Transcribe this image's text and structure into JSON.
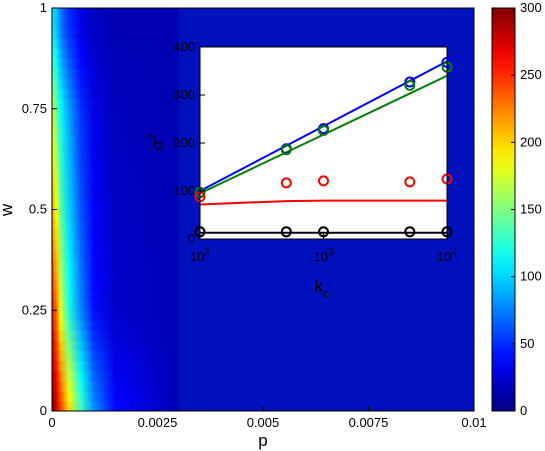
{
  "chart_data": [
    {
      "type": "heatmap",
      "xlabel": "p",
      "ylabel": "w",
      "xlim": [
        0,
        0.01
      ],
      "ylim": [
        0,
        1
      ],
      "x_ticks": [
        0,
        0.0025,
        0.005,
        0.0075,
        0.01
      ],
      "x_tick_labels": [
        "0",
        "0.0025",
        "0.005",
        "0.0075",
        "0.01"
      ],
      "y_ticks": [
        0,
        0.25,
        0.5,
        0.75,
        1
      ],
      "y_tick_labels": [
        "0",
        "0.25",
        "0.5",
        "0.75",
        "1"
      ],
      "colorbar": {
        "range": [
          0,
          300
        ],
        "ticks": [
          0,
          50,
          100,
          150,
          200,
          250,
          300
        ],
        "tick_labels": [
          "0",
          "50",
          "100",
          "150",
          "200",
          "250",
          "300"
        ],
        "colormap": "jet"
      },
      "background_value": 15,
      "ridge": [
        {
          "w": 0.0,
          "values": [
            300,
            280,
            250,
            200,
            130,
            80,
            40,
            15
          ]
        },
        {
          "w": 0.25,
          "values": [
            260,
            230,
            180,
            120,
            75,
            40,
            22,
            15
          ]
        },
        {
          "w": 0.5,
          "values": [
            215,
            185,
            140,
            100,
            60,
            35,
            20,
            15
          ]
        },
        {
          "w": 0.75,
          "values": [
            170,
            145,
            115,
            85,
            50,
            30,
            18,
            15
          ]
        },
        {
          "w": 0.95,
          "values": [
            110,
            95,
            75,
            50,
            30,
            20,
            15,
            15
          ]
        }
      ],
      "ridge_p": [
        0,
        0.0001,
        0.0002,
        0.0004,
        0.0007,
        0.001,
        0.0015,
        0.003
      ]
    },
    {
      "type": "line",
      "xlabel": "k",
      "xlabel_subscript": "c",
      "ylabel": "σ",
      "ylabel_superscript": "2",
      "x_scale": "log",
      "xlim": [
        100,
        10000
      ],
      "ylim": [
        0,
        400
      ],
      "x_ticks": [
        100,
        1000,
        10000
      ],
      "x_tick_base": [
        "10",
        "10",
        "10"
      ],
      "x_tick_exponents": [
        "2",
        "3",
        "4"
      ],
      "y_ticks": [
        0,
        100,
        200,
        300,
        400
      ],
      "y_tick_labels": [
        "0",
        "100",
        "200",
        "300",
        "400"
      ],
      "series": [
        {
          "color": "#0000ff",
          "line": {
            "x": [
              100,
              10000
            ],
            "y": [
              100,
              370
            ]
          },
          "markers": {
            "x": [
              100,
              500,
              1000,
              5000,
              10000
            ],
            "y": [
              97,
              188,
              230,
              327,
              368
            ]
          }
        },
        {
          "color": "#008000",
          "line": {
            "x": [
              100,
              10000
            ],
            "y": [
              95,
              340
            ]
          },
          "markers": {
            "x": [
              100,
              500,
              1000,
              5000,
              10000
            ],
            "y": [
              97,
              186,
              226,
              320,
              358
            ]
          }
        },
        {
          "color": "#ff0000",
          "line": {
            "x": [
              100,
              500,
              1000,
              5000,
              10000
            ],
            "y": [
              72,
              79,
              80,
              80,
              80
            ]
          },
          "markers": {
            "x": [
              100,
              500,
              1000,
              5000,
              10000
            ],
            "y": [
              88,
              117,
              121,
              119,
              125
            ]
          }
        },
        {
          "color": "#000000",
          "line": {
            "x": [
              100,
              10000
            ],
            "y": [
              13,
              13
            ]
          },
          "markers": {
            "x": [
              100,
              500,
              1000,
              5000,
              10000
            ],
            "y": [
              15,
              15,
              15,
              15,
              15
            ]
          }
        }
      ]
    }
  ]
}
